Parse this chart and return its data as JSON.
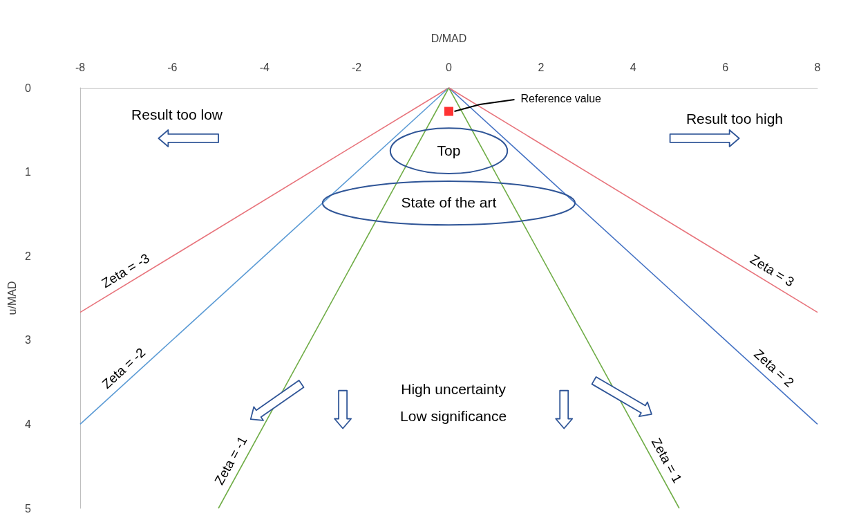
{
  "chart_data": {
    "type": "line",
    "xlabel": "D/MAD",
    "ylabel": "u/MAD",
    "xlim": [
      -8,
      8
    ],
    "xticks": [
      -8,
      -6,
      -4,
      -2,
      0,
      2,
      4,
      6,
      8
    ],
    "ylim": [
      5,
      0
    ],
    "yticks": [
      0,
      1,
      2,
      3,
      4,
      5
    ],
    "grid": false,
    "legend": false,
    "marker": "none",
    "series": [
      {
        "name": "Zeta = -3",
        "color": "#e8747c",
        "x": [
          0,
          -8
        ],
        "values": [
          0,
          2.67
        ]
      },
      {
        "name": "Zeta = -2",
        "color": "#5b9bd5",
        "x": [
          0,
          -8
        ],
        "values": [
          0,
          4
        ]
      },
      {
        "name": "Zeta = -1",
        "color": "#70ad47",
        "x": [
          0,
          -5
        ],
        "values": [
          0,
          5
        ]
      },
      {
        "name": "Zeta = 1",
        "color": "#70ad47",
        "x": [
          0,
          5
        ],
        "values": [
          0,
          5
        ]
      },
      {
        "name": "Zeta = 2",
        "color": "#4472c4",
        "x": [
          0,
          8
        ],
        "values": [
          0,
          4
        ]
      },
      {
        "name": "Zeta = 3",
        "color": "#e8747c",
        "x": [
          0,
          8
        ],
        "values": [
          0,
          2.67
        ]
      },
      {
        "type": "scatter",
        "marker": "square",
        "color": "#ff0000",
        "x": [
          0
        ],
        "values": [
          0.28
        ]
      }
    ],
    "annotations": [
      {
        "text": "Reference value",
        "x": 0,
        "y": 0.28
      },
      "Result too low",
      "Result too high",
      "Top",
      "State of the art",
      "High uncertainty",
      "Low significance"
    ]
  }
}
